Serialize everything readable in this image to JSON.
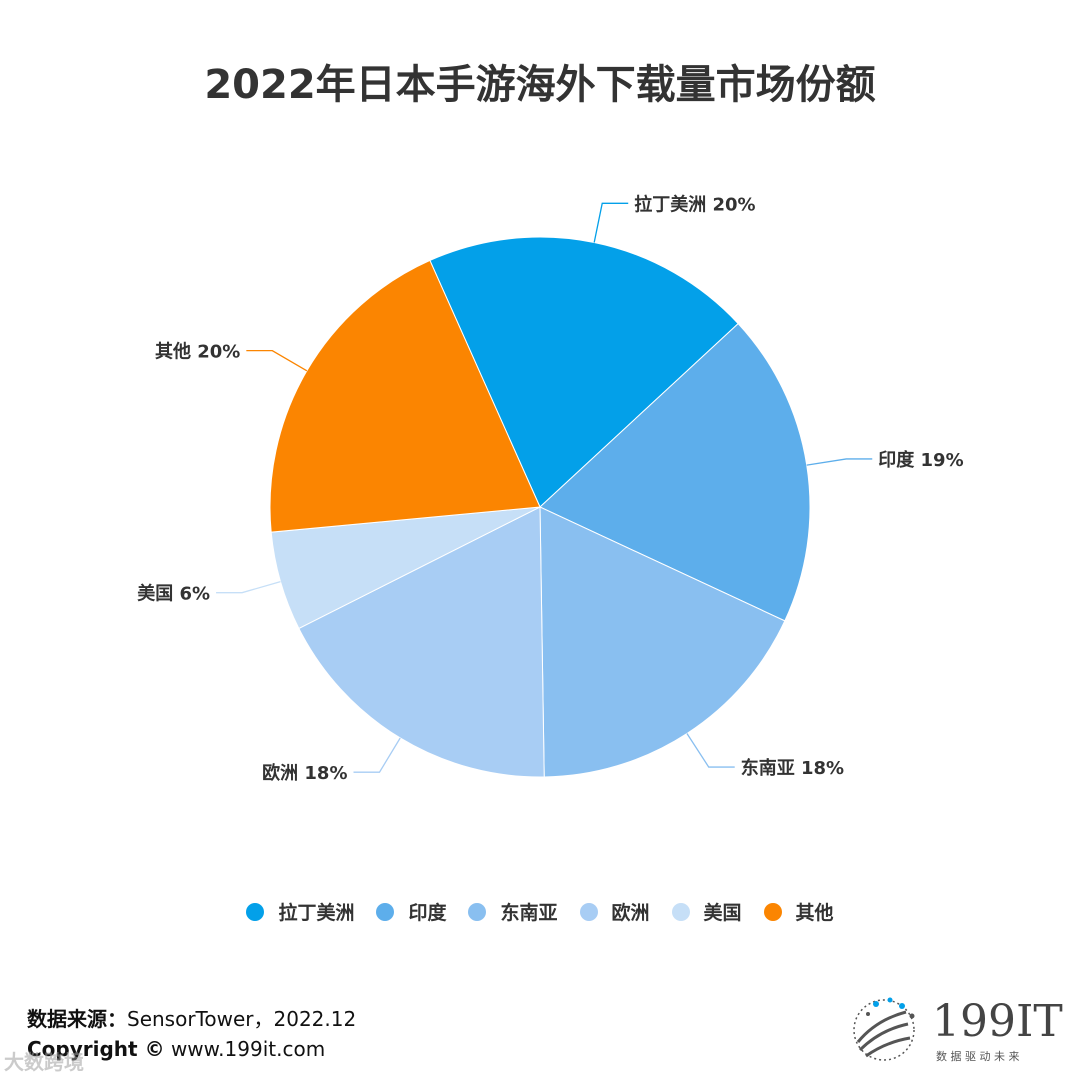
{
  "title": "2022年日本手游海外下载量市场份额",
  "chart_data": {
    "type": "pie",
    "title": "2022年日本手游海外下载量市场份额",
    "slices": [
      {
        "label": "拉丁美洲",
        "value": 20,
        "display": "拉丁美洲 20%",
        "color": "#03a0e9"
      },
      {
        "label": "印度",
        "value": 19,
        "display": "印度 19%",
        "color": "#5daeeb"
      },
      {
        "label": "东南亚",
        "value": 18,
        "display": "东南亚 18%",
        "color": "#89bff0"
      },
      {
        "label": "欧洲",
        "value": 18,
        "display": "欧洲 18%",
        "color": "#a8cdf4"
      },
      {
        "label": "美国",
        "value": 6,
        "display": "美国 6%",
        "color": "#c6dff7"
      },
      {
        "label": "其他",
        "value": 20,
        "display": "其他 20%",
        "color": "#fb8501"
      }
    ],
    "legend_position": "bottom"
  },
  "footer": {
    "source_label": "数据来源：",
    "source_value": "SensorTower，2022.12",
    "copyright_label": "Copyright ©",
    "copyright_value": "www.199it.com",
    "watermark": "大数跨境",
    "logo_text": "199IT",
    "logo_tagline": "数 据 驱 动 未 来"
  }
}
